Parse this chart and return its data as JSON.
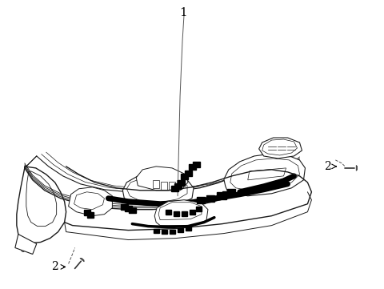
{
  "background_color": "#ffffff",
  "figsize": [
    4.8,
    3.61
  ],
  "dpi": 100,
  "label_1": "1",
  "label_2": "2",
  "label_fontsize": 10,
  "line_color": "#1a1a1a",
  "thick_line_color": "#000000",
  "gray_line_color": "#aaaaaa"
}
